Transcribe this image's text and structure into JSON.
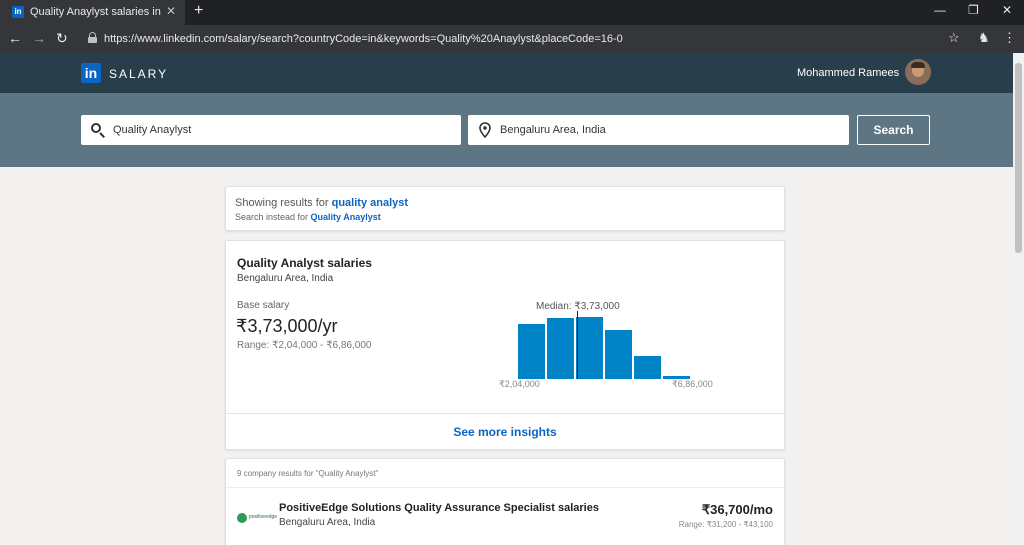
{
  "browser": {
    "tab_title": "Quality Anaylyst salaries in Bengaluru",
    "favicon_text": "in",
    "new_tab": "+",
    "url": "https://www.linkedin.com/salary/search?countryCode=in&keywords=Quality%20Anaylyst&placeCode=16-0"
  },
  "header": {
    "logo": "in",
    "product": "SALARY",
    "user_name": "Mohammed Ramees"
  },
  "search": {
    "keyword": "Quality Anaylyst",
    "location": "Bengaluru Area, India",
    "button": "Search"
  },
  "correction": {
    "showing_prefix": "Showing results for ",
    "showing_term": "quality analyst",
    "instead_prefix": "Search instead for ",
    "instead_term": "Quality Anaylyst"
  },
  "salary_card": {
    "title": "Quality Analyst salaries",
    "location": "Bengaluru Area, India",
    "base_label": "Base salary",
    "amount": "₹3,73,000/yr",
    "range": "Range: ₹2,04,000 - ₹6,86,000",
    "see_more": "See more insights"
  },
  "chart_data": {
    "type": "bar",
    "median_label": "Median: ₹3,73,000",
    "median": 373000,
    "min_label": "₹2,04,000",
    "max_label": "₹6,86,000",
    "values": [
      55,
      61,
      62,
      49,
      23,
      3
    ],
    "color": "#0084c7"
  },
  "companies": {
    "header": "9 company results for \"Quality Anaylyst\"",
    "items": [
      {
        "logo_text": "positiveedge",
        "name": "PositiveEdge Solutions Quality Assurance Specialist salaries",
        "location": "Bengaluru Area, India",
        "amount": "₹36,700/mo",
        "range": "Range: ₹31,200 - ₹43,100"
      }
    ]
  }
}
